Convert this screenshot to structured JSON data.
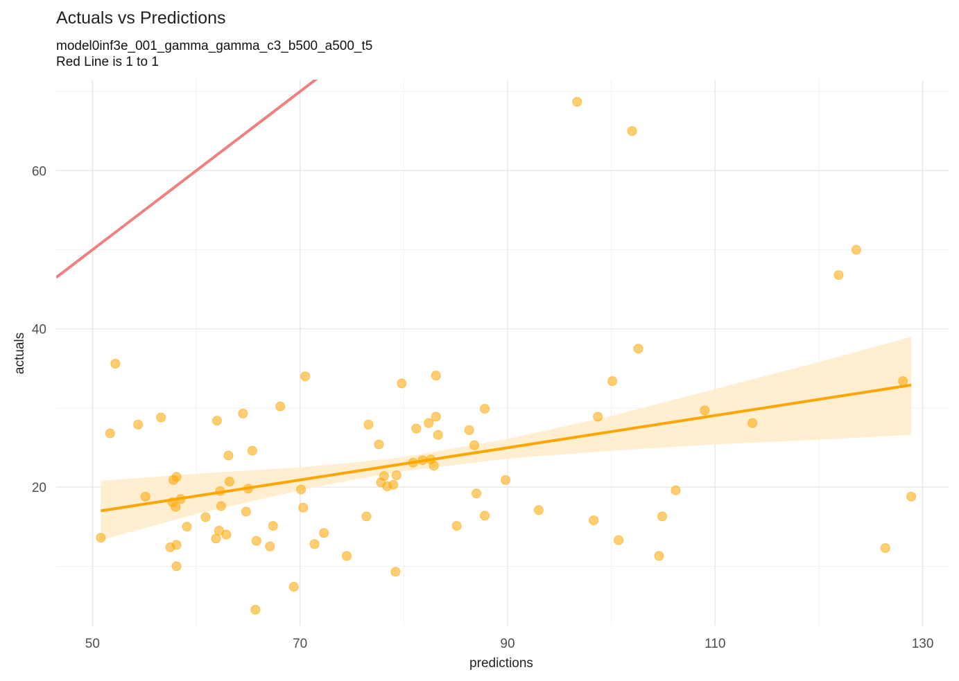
{
  "chart_data": {
    "type": "scatter",
    "title": "Actuals vs Predictions",
    "subtitle": [
      "model0inf3e_001_gamma_gamma_c3_b500_a500_t5",
      "Red Line is 1 to 1"
    ],
    "xlabel": "predictions",
    "ylabel": "actuals",
    "xlim": [
      46.5,
      132.5
    ],
    "ylim": [
      2.5,
      71.5
    ],
    "x_ticks": [
      50,
      70,
      90,
      110,
      130
    ],
    "y_ticks": [
      20,
      40,
      60
    ],
    "grid": true,
    "identity_line": {
      "color": "#F08080",
      "from": [
        46.5,
        46.5
      ],
      "to": [
        132.5,
        132.5
      ]
    },
    "fit_line": {
      "color": "#FFA500",
      "x": [
        50.8,
        128.9
      ],
      "y": [
        17.0,
        32.9
      ]
    },
    "confidence_band": {
      "color": "#FFEBC8",
      "x": [
        50.8,
        60,
        70,
        75,
        80,
        90,
        100,
        110,
        120,
        128.9
      ],
      "lower": [
        13.3,
        16.6,
        19.6,
        20.9,
        22.0,
        23.6,
        24.6,
        25.4,
        26.0,
        26.6
      ],
      "upper": [
        20.8,
        21.7,
        22.5,
        23.1,
        23.8,
        26.1,
        29.0,
        32.4,
        35.8,
        39.0
      ]
    },
    "points_color": "#FFA500",
    "points": [
      [
        50.8,
        13.6
      ],
      [
        51.7,
        26.8
      ],
      [
        52.2,
        35.6
      ],
      [
        54.4,
        27.9
      ],
      [
        55.1,
        18.8
      ],
      [
        56.6,
        28.8
      ],
      [
        57.5,
        12.4
      ],
      [
        57.7,
        18.1
      ],
      [
        57.8,
        20.9
      ],
      [
        58.0,
        17.5
      ],
      [
        58.1,
        21.3
      ],
      [
        58.1,
        12.7
      ],
      [
        58.1,
        10.0
      ],
      [
        58.5,
        18.5
      ],
      [
        59.1,
        15.0
      ],
      [
        60.9,
        16.2
      ],
      [
        61.9,
        13.5
      ],
      [
        62.0,
        28.4
      ],
      [
        62.2,
        14.5
      ],
      [
        62.3,
        19.5
      ],
      [
        62.4,
        17.6
      ],
      [
        62.9,
        14.0
      ],
      [
        63.1,
        24.0
      ],
      [
        63.2,
        20.7
      ],
      [
        64.5,
        29.3
      ],
      [
        64.8,
        16.9
      ],
      [
        65.0,
        19.8
      ],
      [
        65.4,
        24.6
      ],
      [
        65.7,
        4.5
      ],
      [
        65.8,
        13.2
      ],
      [
        67.1,
        12.5
      ],
      [
        67.4,
        15.1
      ],
      [
        68.1,
        30.2
      ],
      [
        69.4,
        7.4
      ],
      [
        70.1,
        19.7
      ],
      [
        70.3,
        17.4
      ],
      [
        70.5,
        34.0
      ],
      [
        71.4,
        12.8
      ],
      [
        72.3,
        14.2
      ],
      [
        74.5,
        11.3
      ],
      [
        76.4,
        16.3
      ],
      [
        76.6,
        27.9
      ],
      [
        77.6,
        25.4
      ],
      [
        77.8,
        20.6
      ],
      [
        78.1,
        21.4
      ],
      [
        78.4,
        20.1
      ],
      [
        79.0,
        20.3
      ],
      [
        79.3,
        21.5
      ],
      [
        79.2,
        9.3
      ],
      [
        79.8,
        33.1
      ],
      [
        80.9,
        23.1
      ],
      [
        81.2,
        27.4
      ],
      [
        81.8,
        23.4
      ],
      [
        82.4,
        28.1
      ],
      [
        82.6,
        23.5
      ],
      [
        82.9,
        22.7
      ],
      [
        83.1,
        34.1
      ],
      [
        83.1,
        28.9
      ],
      [
        83.3,
        26.6
      ],
      [
        85.1,
        15.1
      ],
      [
        86.3,
        27.2
      ],
      [
        86.8,
        25.3
      ],
      [
        87.0,
        19.2
      ],
      [
        87.8,
        29.9
      ],
      [
        87.8,
        16.4
      ],
      [
        89.8,
        20.9
      ],
      [
        93.0,
        17.1
      ],
      [
        96.7,
        68.7
      ],
      [
        98.3,
        15.8
      ],
      [
        98.7,
        28.9
      ],
      [
        100.1,
        33.4
      ],
      [
        100.7,
        13.3
      ],
      [
        102.0,
        65.0
      ],
      [
        102.6,
        37.5
      ],
      [
        104.6,
        11.3
      ],
      [
        104.9,
        16.3
      ],
      [
        106.2,
        19.6
      ],
      [
        109.0,
        29.7
      ],
      [
        113.6,
        28.1
      ],
      [
        121.9,
        46.8
      ],
      [
        123.6,
        50.0
      ],
      [
        126.4,
        12.3
      ],
      [
        128.1,
        33.4
      ],
      [
        128.9,
        18.8
      ]
    ]
  }
}
